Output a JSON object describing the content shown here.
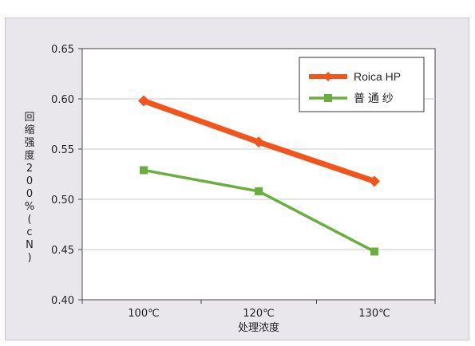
{
  "chart_data": {
    "type": "line",
    "categories": [
      "100℃",
      "120℃",
      "130℃"
    ],
    "series": [
      {
        "name": "Roica HP",
        "values": [
          0.598,
          0.557,
          0.518
        ],
        "color": "#f2551c",
        "marker": "diamond"
      },
      {
        "name": "普 通 纱",
        "values": [
          0.529,
          0.508,
          0.448
        ],
        "color": "#6aae3e",
        "marker": "square"
      }
    ],
    "xlabel": "处理浓度",
    "ylabel": "回缩强度200%(cN)",
    "ylim": [
      0.4,
      0.65
    ],
    "yticks": [
      "0.40",
      "0.45",
      "0.50",
      "0.55",
      "0.60",
      "0.65"
    ],
    "grid": true,
    "legend_position": "top-right",
    "plot_background": "#ffffff",
    "frame_background": "#e9e6ec"
  }
}
